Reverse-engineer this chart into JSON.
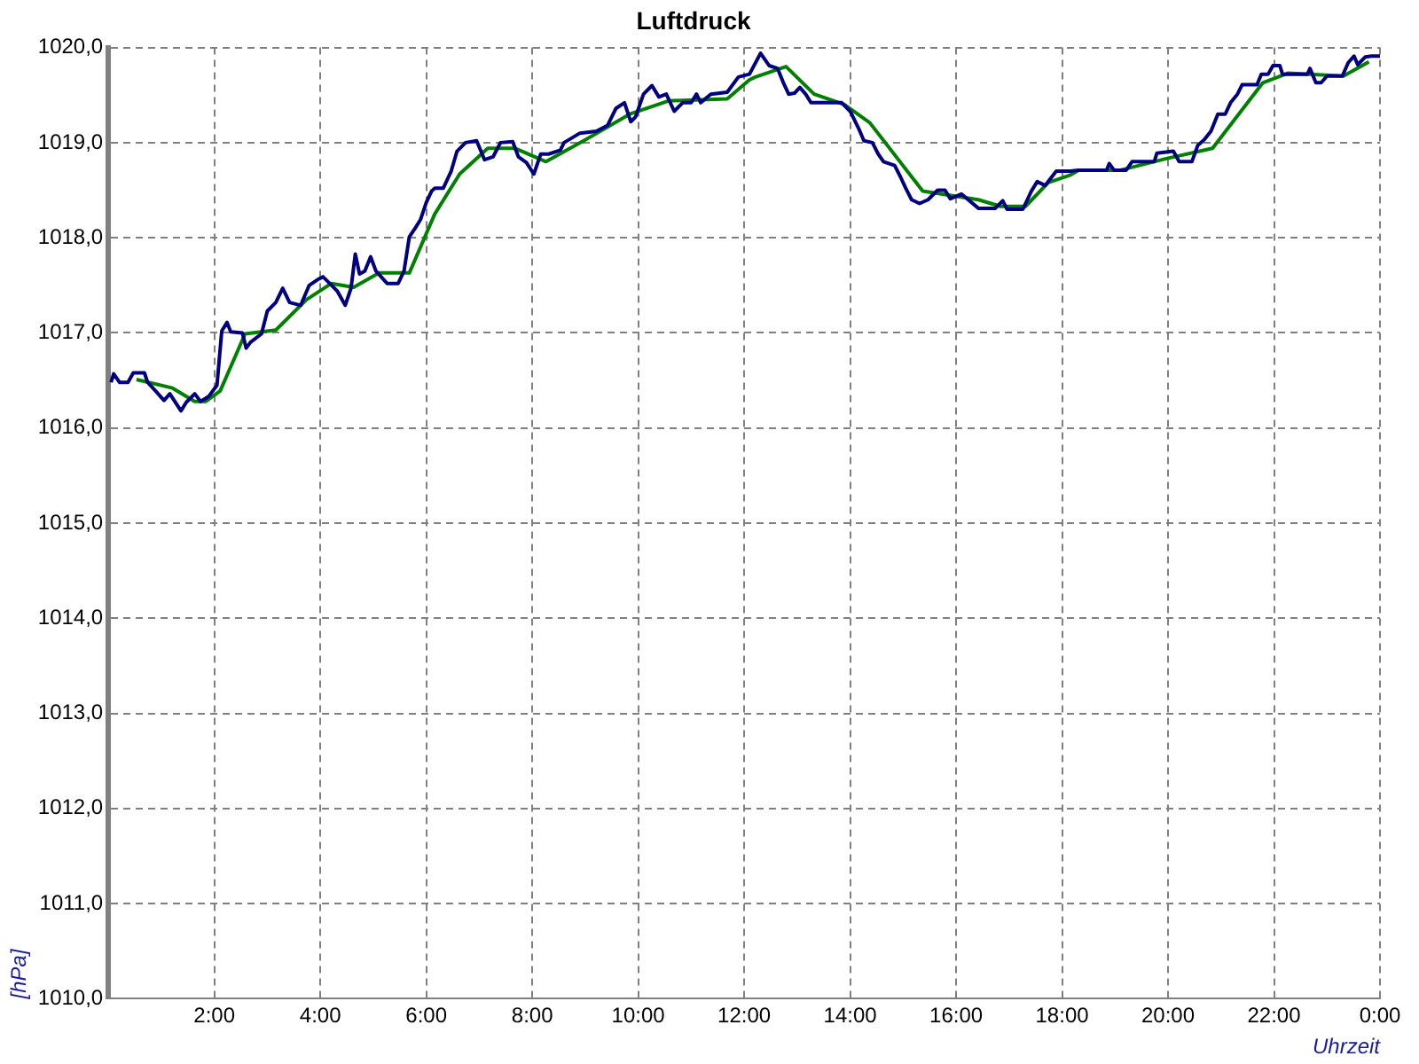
{
  "chart_data": {
    "type": "line",
    "title": "Luftdruck",
    "xlabel": "Uhrzeit",
    "ylabel": "[hPa]",
    "xlim": [
      0,
      24
    ],
    "ylim": [
      1010,
      1020
    ],
    "xticks": [
      {
        "value": 0,
        "label": null
      },
      {
        "value": 2,
        "label": "2:00"
      },
      {
        "value": 4,
        "label": "4:00"
      },
      {
        "value": 6,
        "label": "6:00"
      },
      {
        "value": 8,
        "label": "8:00"
      },
      {
        "value": 10,
        "label": "10:00"
      },
      {
        "value": 12,
        "label": "12:00"
      },
      {
        "value": 14,
        "label": "14:00"
      },
      {
        "value": 16,
        "label": "16:00"
      },
      {
        "value": 18,
        "label": "18:00"
      },
      {
        "value": 20,
        "label": "20:00"
      },
      {
        "value": 22,
        "label": "22:00"
      },
      {
        "value": 24,
        "label": "0:00"
      }
    ],
    "yticks": [
      {
        "value": 1010,
        "label": "1010,0"
      },
      {
        "value": 1011,
        "label": "1011,0"
      },
      {
        "value": 1012,
        "label": "1012,0"
      },
      {
        "value": 1013,
        "label": "1013,0"
      },
      {
        "value": 1014,
        "label": "1014,0"
      },
      {
        "value": 1015,
        "label": "1015,0"
      },
      {
        "value": 1016,
        "label": "1016,0"
      },
      {
        "value": 1017,
        "label": "1017,0"
      },
      {
        "value": 1018,
        "label": "1018,0"
      },
      {
        "value": 1019,
        "label": "1019,0"
      },
      {
        "value": 1020,
        "label": "1020,0"
      }
    ],
    "grid": true,
    "line_style": "solid",
    "series": [
      {
        "color": "#000080",
        "x": [
          0.05,
          0.1,
          0.21,
          0.37,
          0.47,
          0.68,
          0.74,
          0.89,
          1.05,
          1.16,
          1.37,
          1.47,
          1.63,
          1.74,
          1.89,
          2.05,
          2.14,
          2.24,
          2.31,
          2.53,
          2.6,
          2.68,
          2.89,
          3.0,
          3.16,
          3.29,
          3.42,
          3.63,
          3.79,
          3.95,
          4.05,
          4.16,
          4.32,
          4.47,
          4.58,
          4.66,
          4.74,
          4.84,
          4.95,
          5.05,
          5.26,
          5.47,
          5.58,
          5.68,
          5.79,
          5.89,
          6.0,
          6.1,
          6.16,
          6.32,
          6.47,
          6.58,
          6.74,
          6.95,
          7.1,
          7.26,
          7.4,
          7.63,
          7.74,
          7.89,
          8.03,
          8.16,
          8.31,
          8.53,
          8.6,
          8.9,
          9.21,
          9.42,
          9.58,
          9.74,
          9.86,
          9.95,
          10.1,
          10.26,
          10.39,
          10.53,
          10.68,
          10.84,
          11.0,
          11.1,
          11.18,
          11.37,
          11.68,
          11.89,
          12.1,
          12.31,
          12.47,
          12.63,
          12.74,
          12.84,
          12.95,
          13.05,
          13.16,
          13.26,
          13.84,
          14.0,
          14.16,
          14.26,
          14.42,
          14.53,
          14.63,
          14.84,
          14.95,
          15.05,
          15.16,
          15.31,
          15.47,
          15.65,
          15.79,
          15.89,
          16.1,
          16.42,
          16.74,
          16.88,
          16.96,
          17.26,
          17.42,
          17.53,
          17.68,
          17.89,
          18.16,
          18.31,
          18.84,
          18.89,
          18.98,
          19.21,
          19.32,
          19.74,
          19.79,
          20.1,
          20.21,
          20.45,
          20.56,
          20.68,
          20.81,
          20.94,
          21.08,
          21.18,
          21.31,
          21.4,
          21.68,
          21.76,
          21.89,
          21.98,
          22.11,
          22.16,
          22.63,
          22.68,
          22.79,
          22.89,
          23.0,
          23.29,
          23.4,
          23.51,
          23.58,
          23.72,
          23.84,
          24.0
        ],
        "values": [
          1016.48,
          1016.57,
          1016.48,
          1016.48,
          1016.58,
          1016.58,
          1016.48,
          1016.39,
          1016.29,
          1016.36,
          1016.18,
          1016.27,
          1016.36,
          1016.28,
          1016.33,
          1016.45,
          1017.02,
          1017.11,
          1017.01,
          1017.0,
          1016.84,
          1016.9,
          1016.99,
          1017.23,
          1017.32,
          1017.47,
          1017.32,
          1017.29,
          1017.5,
          1017.56,
          1017.59,
          1017.53,
          1017.44,
          1017.29,
          1017.47,
          1017.83,
          1017.62,
          1017.65,
          1017.8,
          1017.65,
          1017.52,
          1017.52,
          1017.65,
          1018.01,
          1018.1,
          1018.19,
          1018.37,
          1018.49,
          1018.52,
          1018.52,
          1018.7,
          1018.91,
          1019.0,
          1019.02,
          1018.82,
          1018.85,
          1019.0,
          1019.01,
          1018.85,
          1018.79,
          1018.67,
          1018.88,
          1018.88,
          1018.92,
          1019.0,
          1019.1,
          1019.12,
          1019.18,
          1019.36,
          1019.42,
          1019.22,
          1019.27,
          1019.51,
          1019.6,
          1019.48,
          1019.51,
          1019.33,
          1019.42,
          1019.42,
          1019.51,
          1019.42,
          1019.51,
          1019.53,
          1019.69,
          1019.72,
          1019.94,
          1019.81,
          1019.78,
          1019.63,
          1019.51,
          1019.52,
          1019.58,
          1019.51,
          1019.42,
          1019.42,
          1019.33,
          1019.15,
          1019.02,
          1019.0,
          1018.88,
          1018.8,
          1018.76,
          1018.64,
          1018.52,
          1018.4,
          1018.36,
          1018.4,
          1018.5,
          1018.5,
          1018.41,
          1018.46,
          1018.31,
          1018.31,
          1018.39,
          1018.3,
          1018.3,
          1018.49,
          1018.59,
          1018.55,
          1018.7,
          1018.7,
          1018.71,
          1018.71,
          1018.78,
          1018.71,
          1018.71,
          1018.8,
          1018.8,
          1018.89,
          1018.91,
          1018.8,
          1018.8,
          1018.97,
          1019.03,
          1019.12,
          1019.3,
          1019.3,
          1019.42,
          1019.51,
          1019.61,
          1019.61,
          1019.72,
          1019.72,
          1019.81,
          1019.81,
          1019.72,
          1019.72,
          1019.78,
          1019.63,
          1019.63,
          1019.7,
          1019.7,
          1019.84,
          1019.91,
          1019.82,
          1019.9,
          1019.91,
          1019.91
        ]
      },
      {
        "color": "#008000",
        "x": [
          0.53,
          1.21,
          1.63,
          1.84,
          2.11,
          2.58,
          3.16,
          3.74,
          4.21,
          4.63,
          5.11,
          5.68,
          6.16,
          6.63,
          7.16,
          7.68,
          8.26,
          9.0,
          9.84,
          10.58,
          11.68,
          12.1,
          12.21,
          12.79,
          13.32,
          13.89,
          14.37,
          15.37,
          16.42,
          16.84,
          17.31,
          17.74,
          18.16,
          18.31,
          19.1,
          19.95,
          20.84,
          21.79,
          22.26,
          23.31,
          23.79
        ],
        "values": [
          1016.51,
          1016.42,
          1016.28,
          1016.28,
          1016.39,
          1016.99,
          1017.03,
          1017.35,
          1017.52,
          1017.48,
          1017.63,
          1017.63,
          1018.25,
          1018.67,
          1018.94,
          1018.94,
          1018.8,
          1019.03,
          1019.3,
          1019.44,
          1019.46,
          1019.66,
          1019.69,
          1019.8,
          1019.51,
          1019.4,
          1019.21,
          1018.49,
          1018.4,
          1018.33,
          1018.33,
          1018.58,
          1018.66,
          1018.71,
          1018.71,
          1018.83,
          1018.94,
          1019.63,
          1019.73,
          1019.7,
          1019.85
        ]
      }
    ]
  }
}
